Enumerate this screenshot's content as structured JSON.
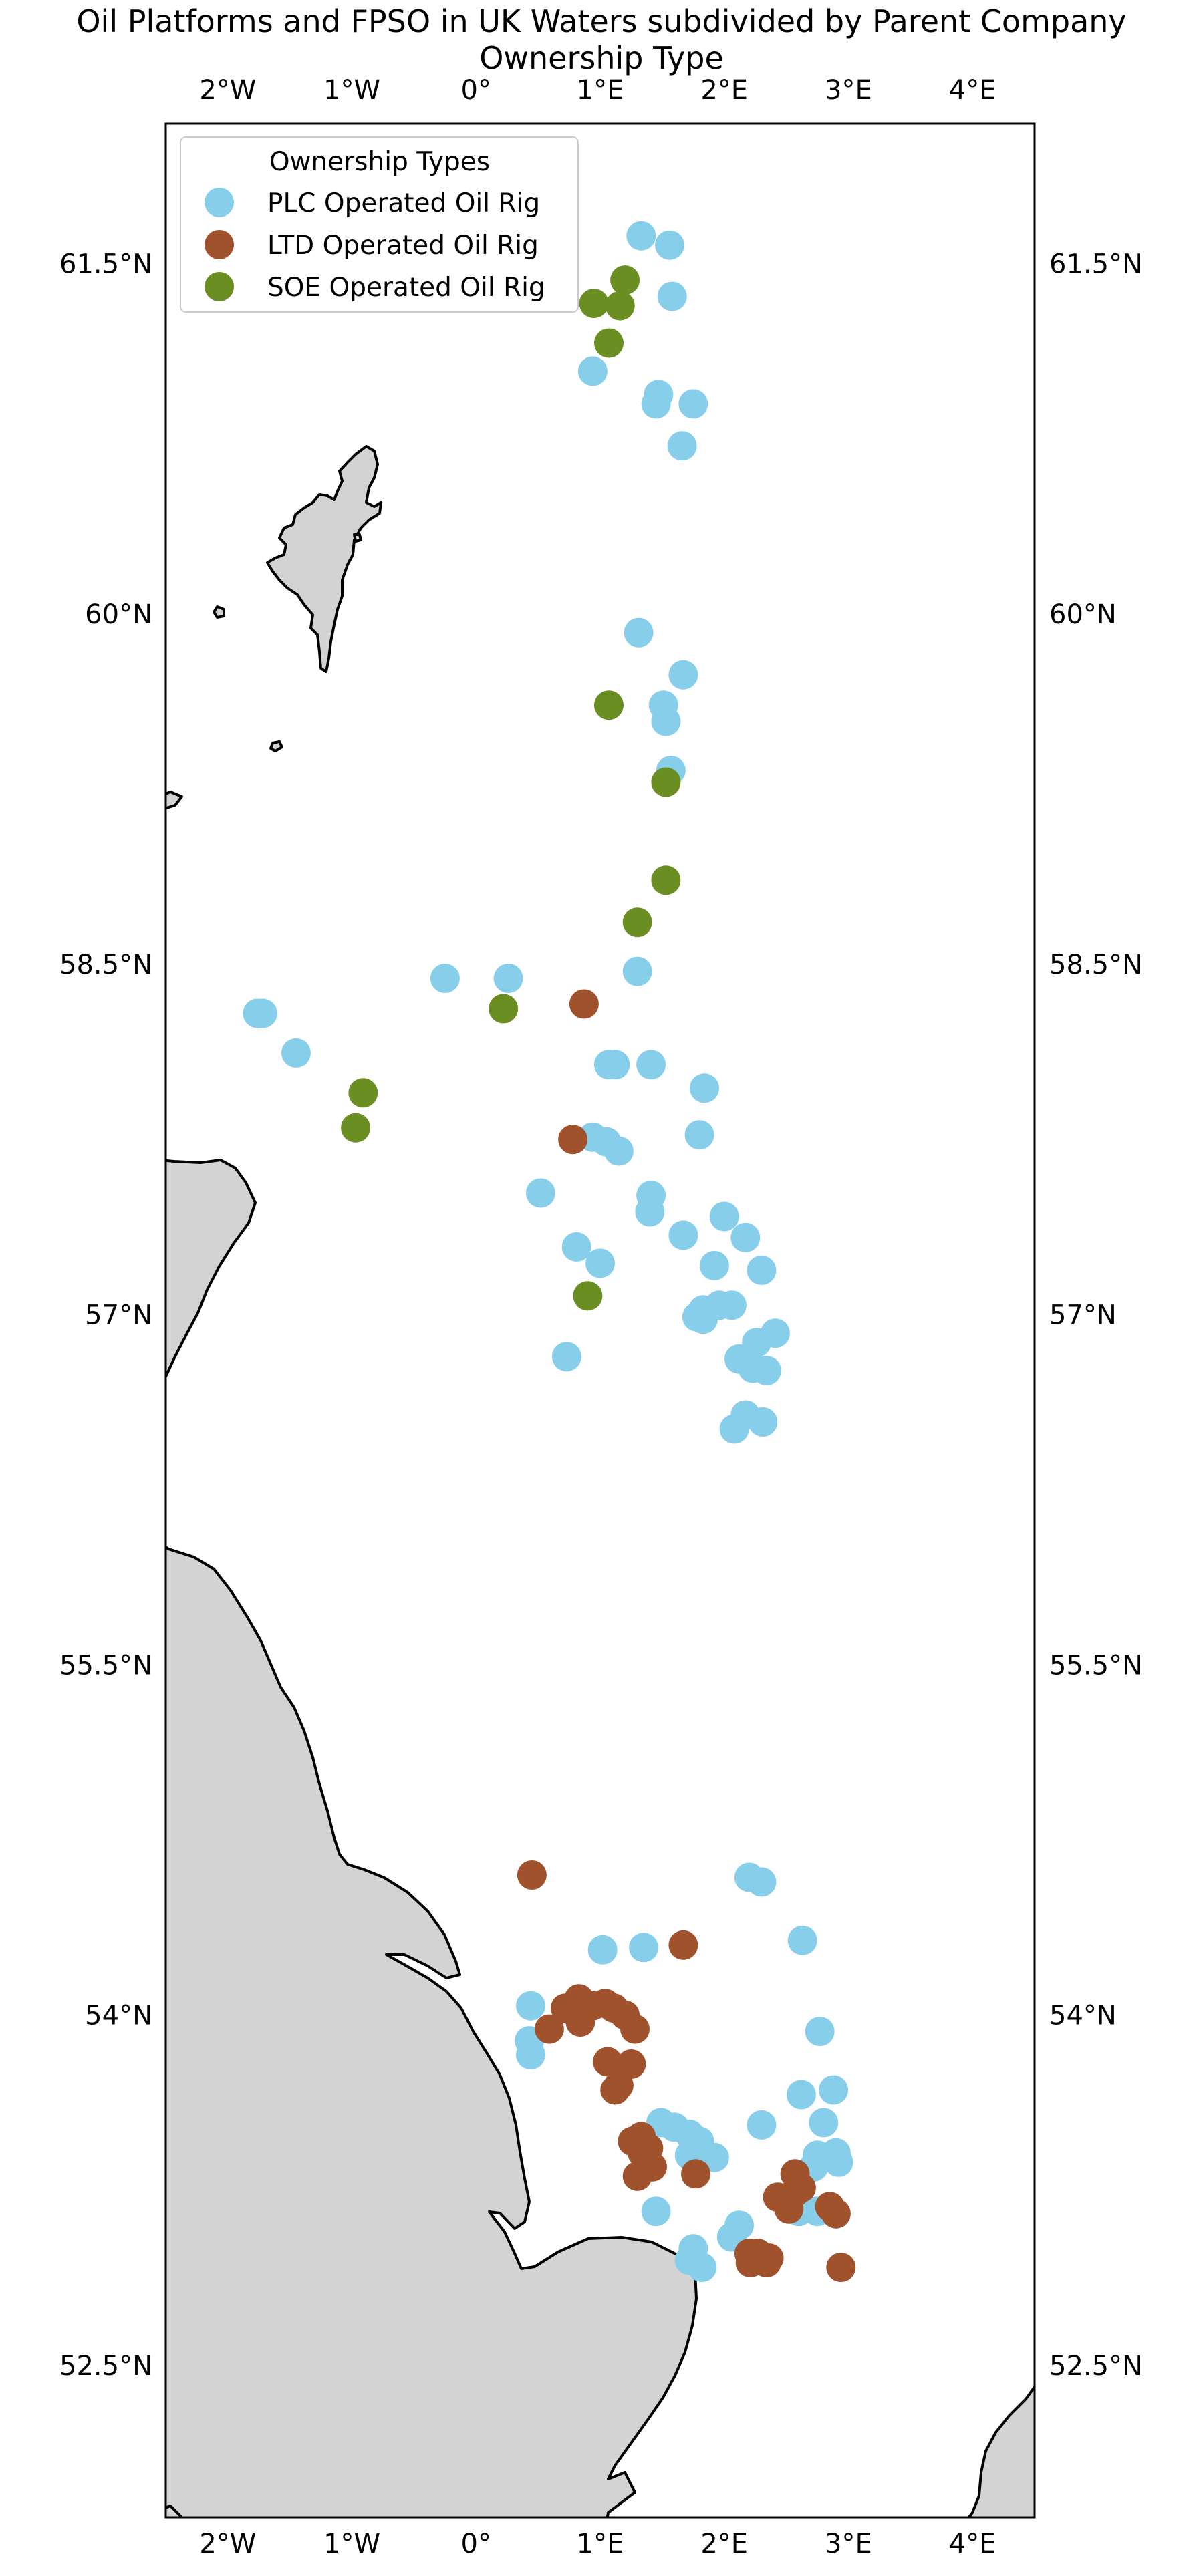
{
  "title": {
    "line1": "Oil Platforms and FPSO in UK Waters subdivided by Parent Company",
    "line2": "Ownership Type"
  },
  "legend": {
    "title": "Ownership Types",
    "items": [
      {
        "label": "PLC Operated Oil Rig",
        "color": "#87ceeb"
      },
      {
        "label": "LTD Operated Oil Rig",
        "color": "#a0522d"
      },
      {
        "label": "SOE Operated Oil Rig",
        "color": "#6b8e23"
      }
    ]
  },
  "colors": {
    "land": "#d3d3d3",
    "sea": "#ffffff",
    "coastline": "#000000"
  },
  "chart_data": {
    "type": "scatter",
    "title": "Oil Platforms and FPSO in UK Waters subdivided by Parent Company Ownership Type",
    "xlim": [
      -2.5,
      4.5
    ],
    "ylim": [
      51.85,
      62.1
    ],
    "x_ticks": [
      {
        "value": -2,
        "label": "2°W"
      },
      {
        "value": -1,
        "label": "1°W"
      },
      {
        "value": 0,
        "label": "0°"
      },
      {
        "value": 1,
        "label": "1°E"
      },
      {
        "value": 2,
        "label": "2°E"
      },
      {
        "value": 3,
        "label": "3°E"
      },
      {
        "value": 4,
        "label": "4°E"
      }
    ],
    "y_ticks": [
      {
        "value": 52.5,
        "label": "52.5°N"
      },
      {
        "value": 54,
        "label": "54°N"
      },
      {
        "value": 55.5,
        "label": "55.5°N"
      },
      {
        "value": 57,
        "label": "57°N"
      },
      {
        "value": 58.5,
        "label": "58.5°N"
      },
      {
        "value": 60,
        "label": "60°N"
      },
      {
        "value": 61.5,
        "label": "61.5°N"
      }
    ],
    "legend_position": "top-left",
    "series": [
      {
        "name": "PLC Operated Oil Rig",
        "color": "#87ceeb",
        "points": [
          [
            1.33,
            61.62
          ],
          [
            1.56,
            61.58
          ],
          [
            1.58,
            61.36
          ],
          [
            0.94,
            61.04
          ],
          [
            1.47,
            60.94
          ],
          [
            1.45,
            60.9
          ],
          [
            1.75,
            60.9
          ],
          [
            1.66,
            60.72
          ],
          [
            1.31,
            59.92
          ],
          [
            1.67,
            59.74
          ],
          [
            1.51,
            59.61
          ],
          [
            1.53,
            59.54
          ],
          [
            1.57,
            59.33
          ],
          [
            1.3,
            58.47
          ],
          [
            0.26,
            58.44
          ],
          [
            -0.25,
            58.44
          ],
          [
            -1.76,
            58.29
          ],
          [
            -1.72,
            58.29
          ],
          [
            -1.45,
            58.12
          ],
          [
            1.07,
            58.07
          ],
          [
            1.12,
            58.07
          ],
          [
            1.41,
            58.07
          ],
          [
            1.84,
            57.97
          ],
          [
            1.8,
            57.77
          ],
          [
            0.94,
            57.76
          ],
          [
            1.05,
            57.74
          ],
          [
            1.15,
            57.7
          ],
          [
            0.52,
            57.52
          ],
          [
            1.41,
            57.51
          ],
          [
            1.4,
            57.44
          ],
          [
            2.0,
            57.42
          ],
          [
            2.17,
            57.33
          ],
          [
            1.67,
            57.34
          ],
          [
            0.81,
            57.29
          ],
          [
            1.0,
            57.22
          ],
          [
            1.92,
            57.21
          ],
          [
            2.3,
            57.19
          ],
          [
            2.06,
            57.04
          ],
          [
            1.96,
            57.04
          ],
          [
            1.83,
            57.02
          ],
          [
            1.78,
            56.99
          ],
          [
            1.83,
            56.98
          ],
          [
            2.41,
            56.92
          ],
          [
            2.26,
            56.88
          ],
          [
            2.12,
            56.81
          ],
          [
            2.23,
            56.77
          ],
          [
            2.34,
            56.76
          ],
          [
            0.73,
            56.82
          ],
          [
            2.17,
            56.57
          ],
          [
            2.31,
            56.54
          ],
          [
            2.08,
            56.51
          ],
          [
            2.2,
            54.59
          ],
          [
            2.3,
            54.57
          ],
          [
            2.63,
            54.32
          ],
          [
            1.02,
            54.28
          ],
          [
            1.35,
            54.29
          ],
          [
            0.44,
            54.04
          ],
          [
            0.43,
            53.89
          ],
          [
            0.44,
            53.83
          ],
          [
            2.77,
            53.93
          ],
          [
            2.88,
            53.68
          ],
          [
            2.62,
            53.66
          ],
          [
            2.8,
            53.54
          ],
          [
            1.49,
            53.54
          ],
          [
            1.6,
            53.52
          ],
          [
            1.72,
            53.49
          ],
          [
            1.8,
            53.46
          ],
          [
            1.78,
            53.4
          ],
          [
            1.72,
            53.4
          ],
          [
            1.92,
            53.39
          ],
          [
            2.3,
            53.53
          ],
          [
            2.9,
            53.41
          ],
          [
            2.92,
            53.37
          ],
          [
            2.75,
            53.4
          ],
          [
            2.72,
            53.35
          ],
          [
            2.75,
            53.16
          ],
          [
            2.6,
            53.16
          ],
          [
            1.45,
            53.16
          ],
          [
            1.75,
            53.0
          ],
          [
            1.82,
            52.92
          ],
          [
            1.72,
            52.95
          ],
          [
            2.06,
            53.05
          ],
          [
            2.12,
            53.1
          ]
        ]
      },
      {
        "name": "LTD Operated Oil Rig",
        "color": "#a0522d",
        "points": [
          [
            0.87,
            58.33
          ],
          [
            0.78,
            57.75
          ],
          [
            0.45,
            54.6
          ],
          [
            1.67,
            54.3
          ],
          [
            0.83,
            54.07
          ],
          [
            0.72,
            54.03
          ],
          [
            0.94,
            54.04
          ],
          [
            1.04,
            54.05
          ],
          [
            1.11,
            54.03
          ],
          [
            1.2,
            54.0
          ],
          [
            1.28,
            53.94
          ],
          [
            0.84,
            53.97
          ],
          [
            0.59,
            53.94
          ],
          [
            1.06,
            53.8
          ],
          [
            1.25,
            53.79
          ],
          [
            1.15,
            53.7
          ],
          [
            1.12,
            53.68
          ],
          [
            1.33,
            53.48
          ],
          [
            1.39,
            53.43
          ],
          [
            1.26,
            53.46
          ],
          [
            1.34,
            53.41
          ],
          [
            1.42,
            53.35
          ],
          [
            1.3,
            53.31
          ],
          [
            1.77,
            53.32
          ],
          [
            2.57,
            53.32
          ],
          [
            2.62,
            53.26
          ],
          [
            2.57,
            53.24
          ],
          [
            2.43,
            53.22
          ],
          [
            2.52,
            53.17
          ],
          [
            2.85,
            53.18
          ],
          [
            2.9,
            53.15
          ],
          [
            2.2,
            52.98
          ],
          [
            2.27,
            52.98
          ],
          [
            2.36,
            52.96
          ],
          [
            2.21,
            52.94
          ],
          [
            2.34,
            52.94
          ],
          [
            2.94,
            52.92
          ]
        ]
      },
      {
        "name": "SOE Operated Oil Rig",
        "color": "#6b8e23",
        "points": [
          [
            1.2,
            61.43
          ],
          [
            0.95,
            61.33
          ],
          [
            1.16,
            61.32
          ],
          [
            1.07,
            61.16
          ],
          [
            1.07,
            59.61
          ],
          [
            1.53,
            59.28
          ],
          [
            1.53,
            58.86
          ],
          [
            1.3,
            58.68
          ],
          [
            0.22,
            58.31
          ],
          [
            -0.91,
            57.95
          ],
          [
            -0.97,
            57.8
          ],
          [
            0.9,
            57.08
          ]
        ]
      }
    ]
  }
}
